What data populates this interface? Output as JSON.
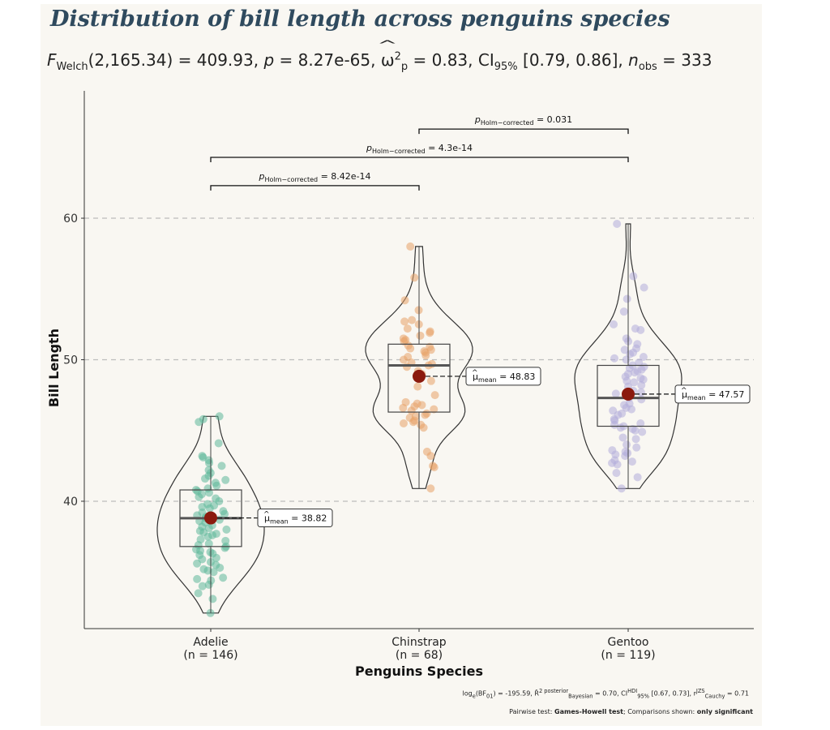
{
  "title": "Distribution of bill length across penguins species",
  "subtitle": {
    "f_label": "F",
    "f_sub": "Welch",
    "f_value": "(2,165.34) = 409.93, ",
    "p_label": "p",
    "p_value": " = 8.27e-65, ",
    "omega": "ω",
    "omega_sup": "2",
    "omega_sub": "p",
    "omega_value": " = 0.83, CI",
    "ci_sub": "95%",
    "ci_value": " [0.79, 0.86], ",
    "n_label": "n",
    "n_sub": "obs",
    "n_value": " = 333"
  },
  "chart_data": {
    "type": "violin-box-scatter",
    "xlabel": "Penguins Species",
    "ylabel": "Bill Length",
    "ylim": [
      31,
      69
    ],
    "yticks": [
      40,
      50,
      60
    ],
    "grid_y": [
      40,
      50,
      60
    ],
    "groups": [
      {
        "name": "Adelie",
        "n_label": "(n = 146)",
        "color": "#5fb89a",
        "min": 32.1,
        "q1": 36.8,
        "median": 38.8,
        "q3": 40.8,
        "max": 46.0,
        "mean": 38.82,
        "mean_label": "38.82",
        "points": [
          32.1,
          33.1,
          33.5,
          34.0,
          34.1,
          34.4,
          34.5,
          34.6,
          35.0,
          35.1,
          35.2,
          35.3,
          35.5,
          35.6,
          35.7,
          35.9,
          36.0,
          36.2,
          36.3,
          36.4,
          36.5,
          36.6,
          36.7,
          36.8,
          36.9,
          37.0,
          37.2,
          37.3,
          37.5,
          37.6,
          37.7,
          37.8,
          37.9,
          38.0,
          38.1,
          38.2,
          38.3,
          38.5,
          38.6,
          38.7,
          38.8,
          38.9,
          39.0,
          39.1,
          39.2,
          39.3,
          39.5,
          39.6,
          39.7,
          39.8,
          40.0,
          40.2,
          40.3,
          40.5,
          40.6,
          40.7,
          40.8,
          40.9,
          41.1,
          41.3,
          41.5,
          41.6,
          41.8,
          42.0,
          42.2,
          42.5,
          42.7,
          42.9,
          43.1,
          43.2,
          44.1,
          45.6,
          45.8,
          46.0
        ]
      },
      {
        "name": "Chinstrap",
        "n_label": "(n = 68)",
        "color": "#e8a268",
        "min": 40.9,
        "q1": 46.3,
        "median": 49.6,
        "q3": 51.1,
        "max": 58.0,
        "mean": 48.83,
        "mean_label": "48.83",
        "points": [
          40.9,
          42.4,
          42.5,
          43.2,
          43.5,
          45.2,
          45.4,
          45.5,
          45.6,
          45.7,
          45.9,
          46.0,
          46.1,
          46.2,
          46.4,
          46.5,
          46.6,
          46.7,
          46.8,
          46.9,
          47.0,
          47.5,
          48.1,
          48.5,
          49.0,
          49.2,
          49.5,
          49.6,
          49.7,
          49.8,
          50.0,
          50.2,
          50.3,
          50.5,
          50.6,
          50.7,
          50.8,
          50.9,
          51.0,
          51.3,
          51.4,
          51.5,
          51.7,
          51.9,
          52.0,
          52.2,
          52.5,
          52.7,
          52.8,
          53.5,
          54.2,
          55.8,
          58.0
        ]
      },
      {
        "name": "Gentoo",
        "n_label": "(n = 119)",
        "color": "#b3addb",
        "min": 40.9,
        "q1": 45.3,
        "median": 47.3,
        "q3": 49.6,
        "max": 59.6,
        "mean": 47.57,
        "mean_label": "47.57",
        "points": [
          40.9,
          41.7,
          42.0,
          42.6,
          42.7,
          42.8,
          42.9,
          43.2,
          43.3,
          43.4,
          43.5,
          43.6,
          43.8,
          44.0,
          44.4,
          44.5,
          44.9,
          45.0,
          45.1,
          45.2,
          45.3,
          45.4,
          45.5,
          45.7,
          45.8,
          46.1,
          46.2,
          46.4,
          46.5,
          46.6,
          46.8,
          46.9,
          47.2,
          47.3,
          47.5,
          47.6,
          47.7,
          47.8,
          48.1,
          48.2,
          48.4,
          48.5,
          48.6,
          48.7,
          48.8,
          49.0,
          49.1,
          49.2,
          49.3,
          49.4,
          49.5,
          49.6,
          49.8,
          50.0,
          50.1,
          50.2,
          50.4,
          50.5,
          50.7,
          50.8,
          51.1,
          51.3,
          51.5,
          52.1,
          52.2,
          52.5,
          53.4,
          54.3,
          55.1,
          55.9,
          59.6
        ]
      }
    ],
    "comparisons": [
      {
        "group1": "Adelie",
        "group2": "Chinstrap",
        "p_label": "p",
        "p_sub": "Holm−corrected",
        "p_value": " = 8.42e-14"
      },
      {
        "group1": "Adelie",
        "group2": "Gentoo",
        "p_label": "p",
        "p_sub": "Holm−corrected",
        "p_value": " = 4.3e-14"
      },
      {
        "group1": "Chinstrap",
        "group2": "Gentoo",
        "p_label": "p",
        "p_sub": "Holm−corrected",
        "p_value": " = 0.031"
      }
    ],
    "mean_prefix": "μ",
    "mean_sub": "mean"
  },
  "caption": {
    "line1": "log<sub>e</sub>(BF<sub>01</sub>) = -195.59, R̂<sup>2 posterior</sup><sub>Bayesian</sub> = 0.70, CI<sup>HDI</sup><sub>95%</sub> [0.67, 0.73], r<sup>JZS</sup><sub>Cauchy</sub> = 0.71",
    "line2_a": "Pairwise test: ",
    "line2_b": "Games-Howell test",
    "line2_c": "; Comparisons shown: ",
    "line2_d": "only significant"
  }
}
